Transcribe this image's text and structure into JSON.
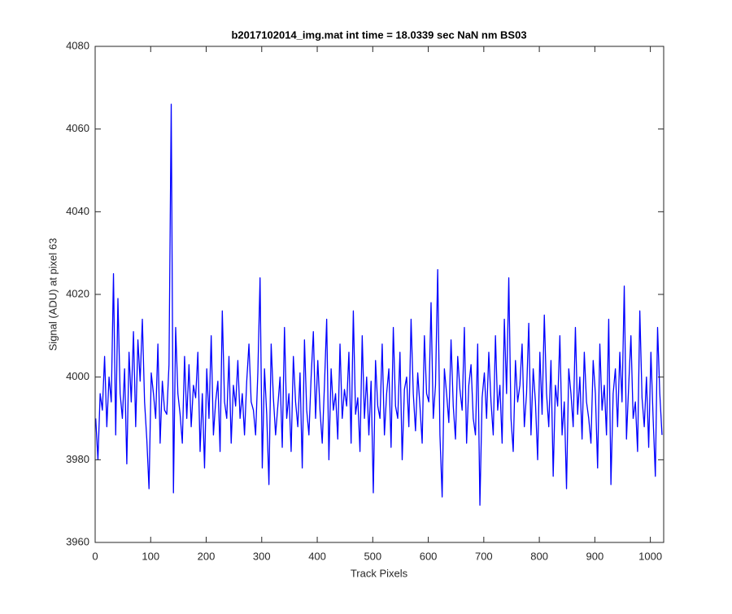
{
  "chart_data": {
    "type": "line",
    "title": "b2017102014_img.mat int time = 18.0339 sec  NaN nm BS03",
    "x_label": "Track Pixels",
    "y_label": "Signal (ADU) at pixel 63",
    "color": "#0000ff",
    "xlim": [
      0,
      1024
    ],
    "ylim": [
      3960,
      4080
    ],
    "xticks": [
      0,
      100,
      200,
      300,
      400,
      500,
      600,
      700,
      800,
      900,
      1000
    ],
    "yticks": [
      3960,
      3980,
      4000,
      4020,
      4040,
      4060,
      4080
    ],
    "x": [
      1,
      5,
      9,
      13,
      17,
      21,
      25,
      29,
      33,
      37,
      41,
      45,
      49,
      53,
      57,
      61,
      65,
      69,
      73,
      77,
      81,
      85,
      89,
      93,
      97,
      101,
      105,
      109,
      113,
      117,
      121,
      125,
      129,
      133,
      137,
      141,
      145,
      149,
      153,
      157,
      161,
      165,
      169,
      173,
      177,
      181,
      185,
      189,
      193,
      197,
      201,
      205,
      209,
      213,
      217,
      221,
      225,
      229,
      233,
      237,
      241,
      245,
      249,
      253,
      257,
      261,
      265,
      269,
      273,
      277,
      281,
      285,
      289,
      293,
      297,
      301,
      305,
      309,
      313,
      317,
      321,
      325,
      329,
      333,
      337,
      341,
      345,
      349,
      353,
      357,
      361,
      365,
      369,
      373,
      377,
      381,
      385,
      389,
      393,
      397,
      401,
      405,
      409,
      413,
      417,
      421,
      425,
      429,
      433,
      437,
      441,
      445,
      449,
      453,
      457,
      461,
      465,
      469,
      473,
      477,
      481,
      485,
      489,
      493,
      497,
      501,
      505,
      509,
      513,
      517,
      521,
      525,
      529,
      533,
      537,
      541,
      545,
      549,
      553,
      557,
      561,
      565,
      569,
      573,
      577,
      581,
      585,
      589,
      593,
      597,
      601,
      605,
      609,
      613,
      617,
      621,
      625,
      629,
      633,
      637,
      641,
      645,
      649,
      653,
      657,
      661,
      665,
      669,
      673,
      677,
      681,
      685,
      689,
      693,
      697,
      701,
      705,
      709,
      713,
      717,
      721,
      725,
      729,
      733,
      737,
      741,
      745,
      749,
      753,
      757,
      761,
      765,
      769,
      773,
      777,
      781,
      785,
      789,
      793,
      797,
      801,
      805,
      809,
      813,
      817,
      821,
      825,
      829,
      833,
      837,
      841,
      845,
      849,
      853,
      857,
      861,
      865,
      869,
      873,
      877,
      881,
      885,
      889,
      893,
      897,
      901,
      905,
      909,
      913,
      917,
      921,
      925,
      929,
      933,
      937,
      941,
      945,
      949,
      953,
      957,
      961,
      965,
      969,
      973,
      977,
      981,
      985,
      989,
      993,
      997,
      1001,
      1005,
      1009,
      1013,
      1017,
      1021
    ],
    "values": [
      3990,
      3980,
      3996,
      3992,
      4005,
      3988,
      4000,
      3994,
      4025,
      3986,
      4019,
      3996,
      3990,
      4002,
      3979,
      4006,
      3994,
      4011,
      3988,
      4009,
      3999,
      4014,
      3994,
      3985,
      3973,
      4001,
      3996,
      3990,
      4008,
      3984,
      3999,
      3992,
      3991,
      4003,
      4066,
      3972,
      4012,
      3996,
      3991,
      3984,
      4005,
      3990,
      4003,
      3988,
      3998,
      3995,
      4006,
      3982,
      3996,
      3978,
      4002,
      3990,
      4010,
      3986,
      3994,
      3999,
      3982,
      4016,
      3994,
      3990,
      4005,
      3984,
      3998,
      3993,
      4004,
      3990,
      3996,
      3986,
      3999,
      4008,
      3994,
      3992,
      3986,
      4001,
      4024,
      3978,
      4002,
      3991,
      3974,
      4008,
      3995,
      3986,
      3993,
      4000,
      3983,
      4012,
      3990,
      3996,
      3982,
      4005,
      3994,
      3988,
      4001,
      3978,
      4009,
      3992,
      3986,
      4000,
      4011,
      3990,
      4004,
      3992,
      3984,
      3998,
      4014,
      3980,
      4002,
      3992,
      3996,
      3985,
      4008,
      3990,
      3997,
      3993,
      4006,
      3984,
      4016,
      3991,
      3995,
      3982,
      4010,
      3990,
      4000,
      3986,
      3999,
      3972,
      4004,
      3993,
      3990,
      4008,
      3986,
      3996,
      4002,
      3983,
      4012,
      3993,
      3990,
      4006,
      3980,
      3997,
      4000,
      3988,
      4014,
      3996,
      3987,
      4001,
      3993,
      3984,
      4010,
      3996,
      3994,
      4018,
      3990,
      3998,
      4026,
      3986,
      3971,
      4002,
      3996,
      3989,
      4009,
      3993,
      3985,
      4005,
      3997,
      3992,
      4012,
      3984,
      3998,
      4003,
      3990,
      3986,
      4008,
      3969,
      3995,
      4001,
      3990,
      4006,
      3994,
      3986,
      4010,
      3992,
      3998,
      3984,
      4014,
      3996,
      4024,
      3990,
      3982,
      4004,
      3994,
      3998,
      4008,
      3988,
      3996,
      4013,
      3986,
      4002,
      3994,
      3980,
      4006,
      3991,
      4015,
      3996,
      3988,
      4004,
      3976,
      3998,
      3993,
      4010,
      3986,
      3994,
      3973,
      4002,
      3996,
      3988,
      4012,
      3991,
      4000,
      3985,
      4006,
      3994,
      3990,
      3984,
      4004,
      3996,
      3978,
      4008,
      3992,
      3998,
      3986,
      4014,
      3974,
      3996,
      4002,
      3988,
      4006,
      3994,
      4022,
      3985,
      3998,
      4010,
      3990,
      3994,
      3982,
      4016,
      3995,
      3988,
      4000,
      3983,
      4006,
      3990,
      3976,
      4012,
      3996,
      3986
    ]
  }
}
